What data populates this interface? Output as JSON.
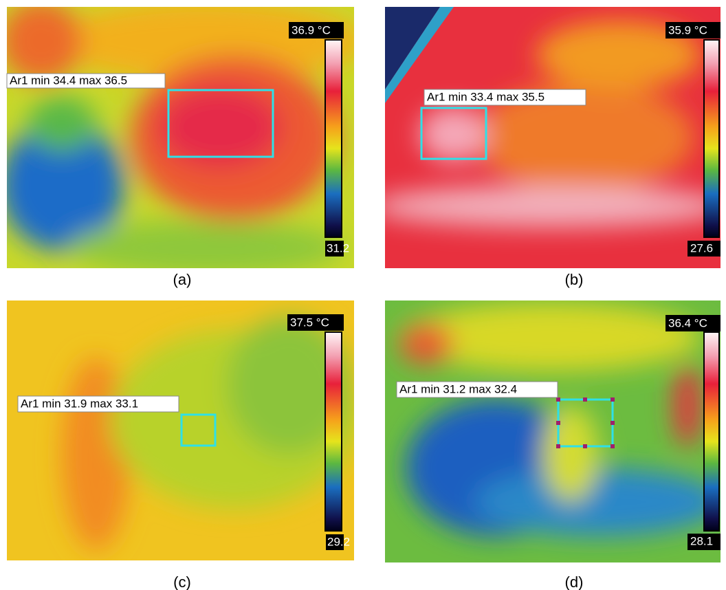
{
  "panels": [
    {
      "label": "(a)",
      "roi_label": "Ar1 min 34.4 max 36.5",
      "scale_max": "36.9 °C",
      "scale_min": "31.2"
    },
    {
      "label": "(b)",
      "roi_label": "Ar1 min 33.4 max 35.5",
      "scale_max": "35.9 °C",
      "scale_min": "27.6"
    },
    {
      "label": "(c)",
      "roi_label": "Ar1 min 31.9 max 33.1",
      "scale_max": "37.5 °C",
      "scale_min": "29.2"
    },
    {
      "label": "(d)",
      "roi_label": "Ar1 min 31.2 max 32.4",
      "scale_max": "36.4 °C",
      "scale_min": "28.1"
    }
  ]
}
